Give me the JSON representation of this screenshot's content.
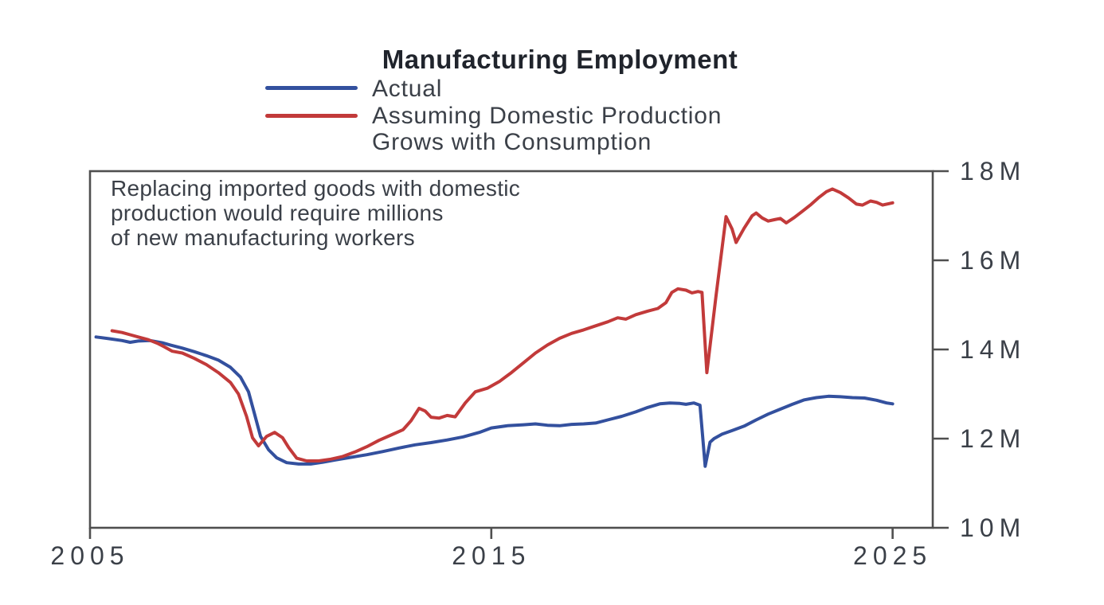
{
  "figure": {
    "title": "Manufacturing Employment",
    "legend": [
      {
        "name": "actual",
        "label_lines": [
          "Actual"
        ],
        "color": "#33509e"
      },
      {
        "name": "counterfactual",
        "label_lines": [
          "Assuming Domestic Production",
          "Grows with Consumption"
        ],
        "color": "#c23a3a"
      }
    ],
    "annotation_lines": [
      "Replacing imported goods with domestic",
      "production would require millions",
      "of new manufacturing workers"
    ]
  },
  "colors": {
    "axis": "#4f4f4f",
    "text": "#3b4048",
    "actual_line": "#33509e",
    "counterfactual_line": "#c23a3a"
  },
  "chart_data": {
    "type": "line",
    "title": "Manufacturing Employment",
    "annotation": "Replacing imported goods with domestic production would require millions of new manufacturing workers",
    "grid": false,
    "legend_position": "top-left-above-plot",
    "x_axis": {
      "range": [
        2005,
        2026
      ],
      "ticks": [
        2005,
        2015,
        2025
      ],
      "tick_labels": [
        "2005",
        "2015",
        "2025"
      ]
    },
    "y_axis": {
      "range": [
        10,
        18
      ],
      "ticks": [
        10,
        12,
        14,
        16,
        18
      ],
      "tick_labels": [
        "10M",
        "12M",
        "14M",
        "16M",
        "18M"
      ],
      "unit": "millions of workers"
    },
    "series": [
      {
        "name": "Actual",
        "color": "#33509e",
        "points": [
          [
            2005.15,
            14.28
          ],
          [
            2005.5,
            14.24
          ],
          [
            2005.8,
            14.2
          ],
          [
            2006.0,
            14.16
          ],
          [
            2006.2,
            14.19
          ],
          [
            2006.5,
            14.2
          ],
          [
            2006.8,
            14.15
          ],
          [
            2007.0,
            14.1
          ],
          [
            2007.3,
            14.03
          ],
          [
            2007.6,
            13.95
          ],
          [
            2007.9,
            13.86
          ],
          [
            2008.2,
            13.76
          ],
          [
            2008.5,
            13.6
          ],
          [
            2008.75,
            13.38
          ],
          [
            2008.95,
            13.05
          ],
          [
            2009.1,
            12.55
          ],
          [
            2009.25,
            12.05
          ],
          [
            2009.45,
            11.75
          ],
          [
            2009.65,
            11.57
          ],
          [
            2009.9,
            11.46
          ],
          [
            2010.2,
            11.43
          ],
          [
            2010.5,
            11.43
          ],
          [
            2010.8,
            11.47
          ],
          [
            2011.1,
            11.52
          ],
          [
            2011.5,
            11.58
          ],
          [
            2011.9,
            11.64
          ],
          [
            2012.3,
            11.71
          ],
          [
            2012.7,
            11.79
          ],
          [
            2013.1,
            11.86
          ],
          [
            2013.5,
            11.91
          ],
          [
            2013.9,
            11.97
          ],
          [
            2014.3,
            12.04
          ],
          [
            2014.7,
            12.14
          ],
          [
            2015.0,
            12.24
          ],
          [
            2015.4,
            12.29
          ],
          [
            2015.8,
            12.31
          ],
          [
            2016.1,
            12.33
          ],
          [
            2016.4,
            12.3
          ],
          [
            2016.7,
            12.29
          ],
          [
            2017.0,
            12.32
          ],
          [
            2017.3,
            12.33
          ],
          [
            2017.6,
            12.35
          ],
          [
            2017.9,
            12.42
          ],
          [
            2018.25,
            12.5
          ],
          [
            2018.6,
            12.6
          ],
          [
            2018.9,
            12.7
          ],
          [
            2019.2,
            12.78
          ],
          [
            2019.45,
            12.8
          ],
          [
            2019.7,
            12.79
          ],
          [
            2019.85,
            12.77
          ],
          [
            2020.05,
            12.8
          ],
          [
            2020.2,
            12.75
          ],
          [
            2020.33,
            11.38
          ],
          [
            2020.45,
            11.92
          ],
          [
            2020.55,
            12.0
          ],
          [
            2020.75,
            12.1
          ],
          [
            2021.0,
            12.18
          ],
          [
            2021.3,
            12.28
          ],
          [
            2021.6,
            12.42
          ],
          [
            2021.9,
            12.55
          ],
          [
            2022.2,
            12.66
          ],
          [
            2022.5,
            12.77
          ],
          [
            2022.8,
            12.87
          ],
          [
            2023.1,
            12.92
          ],
          [
            2023.4,
            12.95
          ],
          [
            2023.7,
            12.94
          ],
          [
            2024.0,
            12.92
          ],
          [
            2024.3,
            12.91
          ],
          [
            2024.6,
            12.86
          ],
          [
            2024.85,
            12.8
          ],
          [
            2025.0,
            12.78
          ]
        ]
      },
      {
        "name": "Assuming Domestic Production Grows with Consumption",
        "color": "#c23a3a",
        "points": [
          [
            2005.55,
            14.42
          ],
          [
            2005.8,
            14.38
          ],
          [
            2006.0,
            14.33
          ],
          [
            2006.2,
            14.28
          ],
          [
            2006.45,
            14.22
          ],
          [
            2006.7,
            14.13
          ],
          [
            2006.85,
            14.06
          ],
          [
            2007.05,
            13.96
          ],
          [
            2007.3,
            13.92
          ],
          [
            2007.6,
            13.8
          ],
          [
            2007.9,
            13.66
          ],
          [
            2008.2,
            13.48
          ],
          [
            2008.5,
            13.26
          ],
          [
            2008.7,
            13.0
          ],
          [
            2008.9,
            12.5
          ],
          [
            2009.05,
            12.02
          ],
          [
            2009.2,
            11.84
          ],
          [
            2009.4,
            12.05
          ],
          [
            2009.6,
            12.14
          ],
          [
            2009.8,
            12.02
          ],
          [
            2009.95,
            11.8
          ],
          [
            2010.15,
            11.56
          ],
          [
            2010.4,
            11.5
          ],
          [
            2010.7,
            11.5
          ],
          [
            2011.0,
            11.54
          ],
          [
            2011.3,
            11.6
          ],
          [
            2011.6,
            11.7
          ],
          [
            2011.9,
            11.82
          ],
          [
            2012.2,
            11.96
          ],
          [
            2012.5,
            12.08
          ],
          [
            2012.8,
            12.2
          ],
          [
            2013.0,
            12.4
          ],
          [
            2013.2,
            12.68
          ],
          [
            2013.35,
            12.62
          ],
          [
            2013.5,
            12.48
          ],
          [
            2013.7,
            12.46
          ],
          [
            2013.9,
            12.52
          ],
          [
            2014.1,
            12.49
          ],
          [
            2014.35,
            12.8
          ],
          [
            2014.6,
            13.05
          ],
          [
            2014.9,
            13.13
          ],
          [
            2015.2,
            13.28
          ],
          [
            2015.5,
            13.48
          ],
          [
            2015.8,
            13.7
          ],
          [
            2016.1,
            13.92
          ],
          [
            2016.4,
            14.1
          ],
          [
            2016.7,
            14.25
          ],
          [
            2017.0,
            14.36
          ],
          [
            2017.3,
            14.44
          ],
          [
            2017.6,
            14.53
          ],
          [
            2017.9,
            14.62
          ],
          [
            2018.15,
            14.71
          ],
          [
            2018.35,
            14.68
          ],
          [
            2018.6,
            14.78
          ],
          [
            2018.9,
            14.86
          ],
          [
            2019.15,
            14.92
          ],
          [
            2019.35,
            15.05
          ],
          [
            2019.5,
            15.28
          ],
          [
            2019.65,
            15.36
          ],
          [
            2019.85,
            15.33
          ],
          [
            2020.0,
            15.27
          ],
          [
            2020.15,
            15.3
          ],
          [
            2020.25,
            15.28
          ],
          [
            2020.37,
            13.48
          ],
          [
            2020.6,
            15.2
          ],
          [
            2020.85,
            16.98
          ],
          [
            2021.0,
            16.7
          ],
          [
            2021.1,
            16.4
          ],
          [
            2021.3,
            16.72
          ],
          [
            2021.5,
            17.0
          ],
          [
            2021.6,
            17.06
          ],
          [
            2021.75,
            16.95
          ],
          [
            2021.9,
            16.88
          ],
          [
            2022.05,
            16.91
          ],
          [
            2022.2,
            16.94
          ],
          [
            2022.35,
            16.84
          ],
          [
            2022.55,
            16.96
          ],
          [
            2022.75,
            17.1
          ],
          [
            2022.95,
            17.24
          ],
          [
            2023.15,
            17.4
          ],
          [
            2023.35,
            17.54
          ],
          [
            2023.5,
            17.6
          ],
          [
            2023.7,
            17.52
          ],
          [
            2023.9,
            17.4
          ],
          [
            2024.1,
            17.26
          ],
          [
            2024.25,
            17.24
          ],
          [
            2024.45,
            17.33
          ],
          [
            2024.6,
            17.3
          ],
          [
            2024.75,
            17.24
          ],
          [
            2024.9,
            17.27
          ],
          [
            2025.0,
            17.29
          ]
        ]
      }
    ]
  }
}
